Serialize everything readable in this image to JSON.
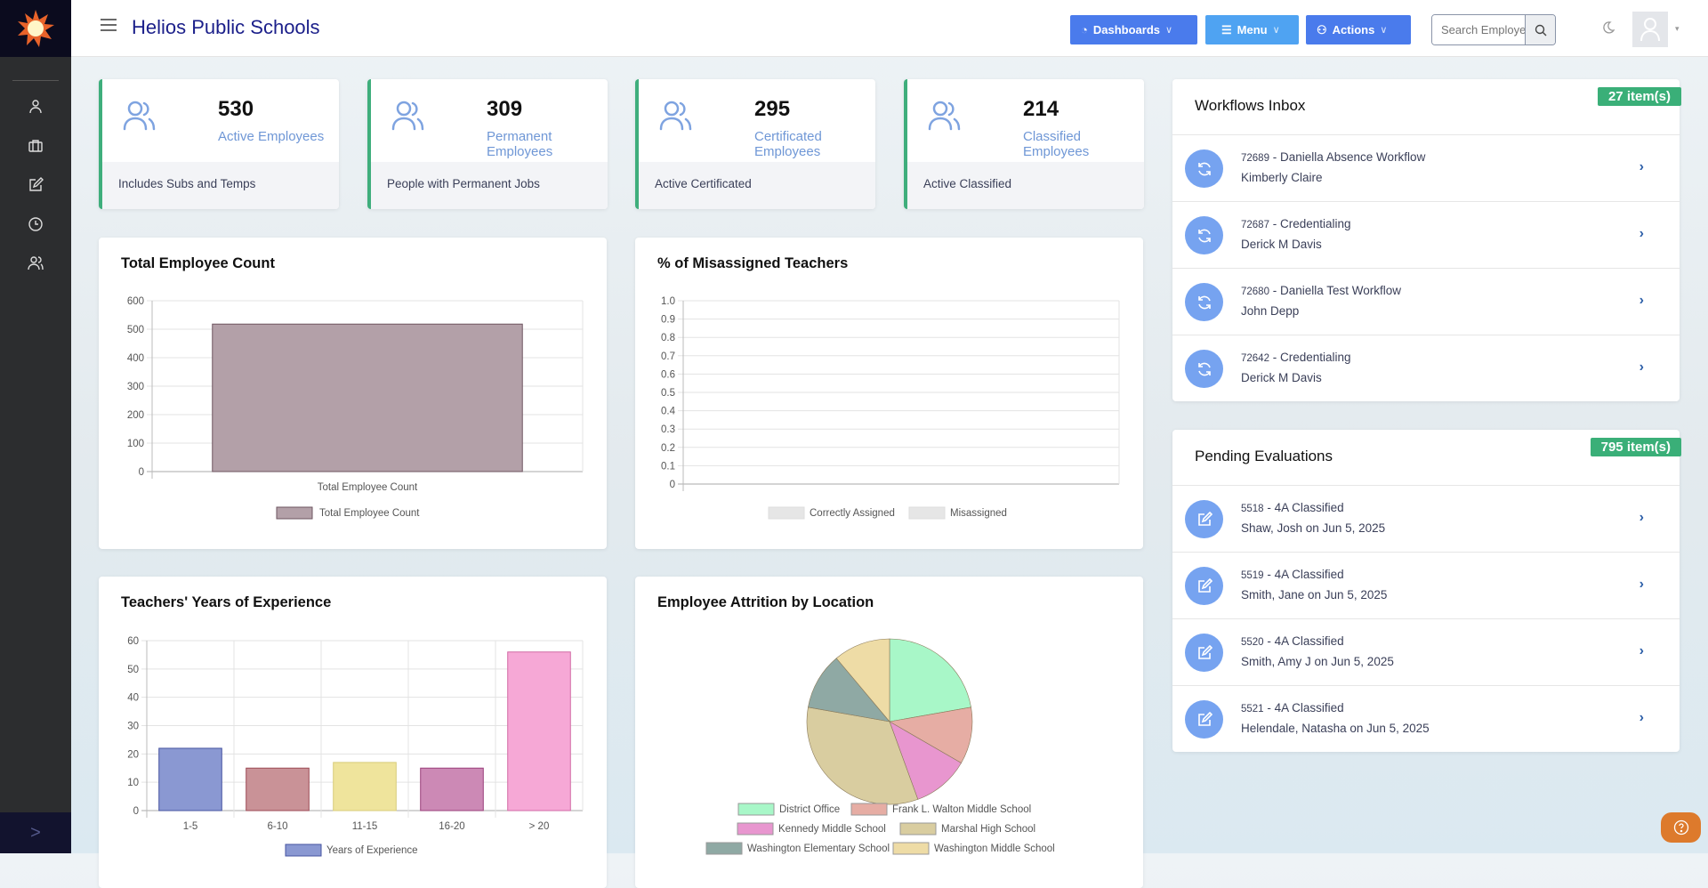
{
  "app": {
    "title": "Helios Public Schools"
  },
  "header": {
    "buttons": [
      {
        "label": "Dashboards",
        "icon": "pie-chart-icon",
        "color": "#4a7bec"
      },
      {
        "label": "Menu",
        "icon": "list-icon",
        "color": "#4fa3f2"
      },
      {
        "label": "Actions",
        "icon": "user-plus-icon",
        "color": "#4a7bec"
      }
    ],
    "search": {
      "placeholder": "Search Employee..",
      "value": ""
    }
  },
  "sidebar": {
    "items": [
      {
        "icon": "user-icon"
      },
      {
        "icon": "briefcase-icon"
      },
      {
        "icon": "edit-icon"
      },
      {
        "icon": "clock-icon"
      },
      {
        "icon": "users-icon"
      }
    ]
  },
  "stats": [
    {
      "value": "530",
      "label": "Active Employees",
      "footer": "Includes Subs and Temps"
    },
    {
      "value": "309",
      "label": "Permanent Employees",
      "footer": "People with Permanent Jobs"
    },
    {
      "value": "295",
      "label": "Certificated Employees",
      "footer": "Active Certificated"
    },
    {
      "value": "214",
      "label": "Classified Employees",
      "footer": "Active Classified"
    }
  ],
  "colors": {
    "accent": "#3fae7c",
    "badge": "#3aaf78",
    "icon_circle": "#76a3f0",
    "title": "#1b1f8a"
  },
  "chart_data": [
    {
      "type": "bar",
      "title": "Total Employee Count",
      "categories": [
        "Total Employee Count"
      ],
      "series": [
        {
          "name": "Total Employee Count",
          "values": [
            518
          ],
          "color": "#b3a0a8",
          "border": "#6e5560"
        }
      ],
      "ylim": [
        0,
        600
      ],
      "yticks": [
        0,
        100,
        200,
        300,
        400,
        500,
        600
      ],
      "grid": true,
      "legend": "bottom"
    },
    {
      "type": "pie",
      "title": "% of Misassigned Teachers",
      "categories": [],
      "series": [
        {
          "name": "Correctly Assigned",
          "values": []
        },
        {
          "name": "Misassigned",
          "values": []
        }
      ],
      "ylim": [
        0,
        1
      ],
      "yticks": [
        "0",
        "0.1",
        "0.2",
        "0.3",
        "0.4",
        "0.5",
        "0.6",
        "0.7",
        "0.8",
        "0.9",
        "1.0"
      ],
      "grid": true,
      "legend": "bottom"
    },
    {
      "type": "bar",
      "title": "Teachers' Years of Experience",
      "categories": [
        "1-5",
        "6-10",
        "11-15",
        "16-20",
        "> 20"
      ],
      "series": [
        {
          "name": "Years of Experience",
          "values": [
            22,
            15,
            17,
            15,
            56
          ]
        }
      ],
      "colors": [
        "#8a98d2",
        "#c99297",
        "#efe49c",
        "#cc89b5",
        "#f6a8d6"
      ],
      "borders": [
        "#4653a0",
        "#9c4a55",
        "#d8cc7a",
        "#9a3f7a",
        "#d26aa5"
      ],
      "ylim": [
        0,
        60
      ],
      "yticks": [
        0,
        10,
        20,
        30,
        40,
        50,
        60
      ],
      "grid": true,
      "legend": "bottom"
    },
    {
      "type": "pie",
      "title": "Employee Attrition by Location",
      "categories": [
        "District Office",
        "Frank L. Walton Middle School",
        "Kennedy Middle School",
        "Marshal High School",
        "Washington Elementary School",
        "Washington Middle School"
      ],
      "values": [
        2,
        1,
        1,
        3,
        1,
        1
      ],
      "colors": [
        "#a8f7c8",
        "#e6ada4",
        "#e896cf",
        "#d9cda0",
        "#8fa9a4",
        "#eedca6"
      ],
      "legend": "bottom"
    }
  ],
  "workflows": {
    "title": "Workflows Inbox",
    "badge": "27 item(s)",
    "items": [
      {
        "id": "72689",
        "name": "Daniella Absence Workflow",
        "person": "Kimberly Claire"
      },
      {
        "id": "72687",
        "name": "Credentialing",
        "person": "Derick M Davis"
      },
      {
        "id": "72680",
        "name": "Daniella Test Workflow",
        "person": "John Depp"
      },
      {
        "id": "72642",
        "name": "Credentialing",
        "person": "Derick M Davis"
      }
    ]
  },
  "evaluations": {
    "title": "Pending Evaluations",
    "badge": "795 item(s)",
    "items": [
      {
        "id": "5518",
        "name": "4A Classified",
        "person": "Shaw, Josh on Jun 5, 2025"
      },
      {
        "id": "5519",
        "name": "4A Classified",
        "person": "Smith, Jane on Jun 5, 2025"
      },
      {
        "id": "5520",
        "name": "4A Classified",
        "person": "Smith, Amy J on Jun 5, 2025"
      },
      {
        "id": "5521",
        "name": "4A Classified",
        "person": "Helendale, Natasha on Jun 5, 2025"
      }
    ]
  }
}
